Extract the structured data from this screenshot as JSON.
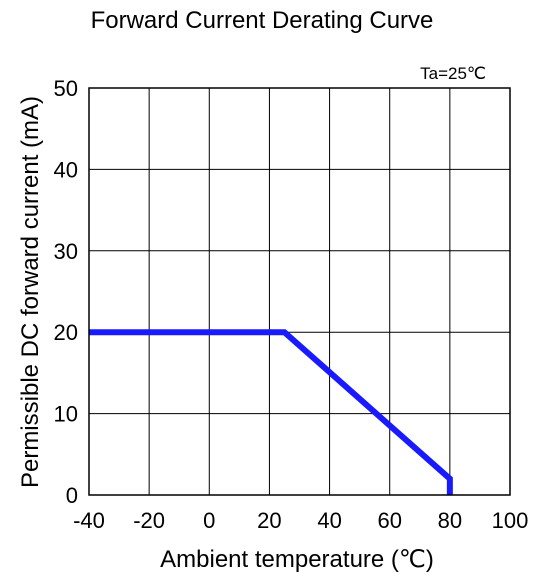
{
  "chart_data": {
    "type": "line",
    "title": "Forward Current Derating Curve",
    "annotation": "Ta=25℃",
    "xlabel": "Ambient temperature (℃)",
    "ylabel": "Permissible DC forward current (mA)",
    "xlim": [
      -40,
      100
    ],
    "ylim": [
      0,
      50
    ],
    "x_ticks": [
      -40,
      -20,
      0,
      20,
      40,
      60,
      80,
      100
    ],
    "y_ticks": [
      0,
      10,
      20,
      30,
      40,
      50
    ],
    "x_tick_labels": [
      "-40",
      "-20",
      "0",
      "20",
      "40",
      "60",
      "80",
      "100"
    ],
    "y_tick_labels": [
      "0",
      "10",
      "20",
      "30",
      "40",
      "50"
    ],
    "grid": true,
    "series": [
      {
        "color": "#1a1aff",
        "x": [
          -40,
          25,
          80,
          80
        ],
        "y": [
          20,
          20,
          2,
          0
        ]
      }
    ]
  }
}
